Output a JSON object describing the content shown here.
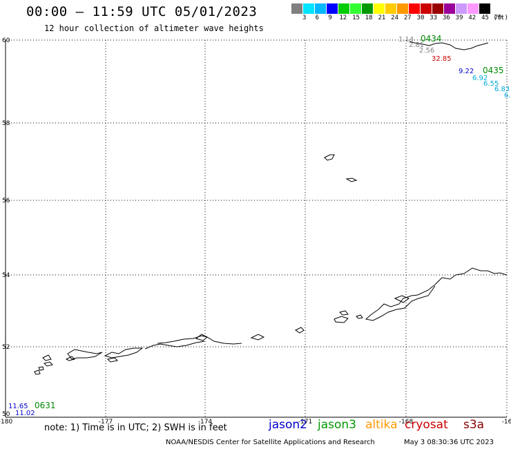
{
  "header": {
    "title": "00:00 – 11:59 UTC 05/01/2023",
    "subtitle": "12 hour collection of altimeter wave heights"
  },
  "color_scale": {
    "colors": [
      "#808080",
      "#00e5ff",
      "#00b8ff",
      "#0000ff",
      "#00cc00",
      "#33ff33",
      "#009900",
      "#ffff00",
      "#ffcc00",
      "#ff9900",
      "#ff0000",
      "#cc0000",
      "#990000",
      "#990099",
      "#cc99ff",
      "#ff99ff",
      "#000000"
    ],
    "labels": [
      "3",
      "6",
      "9",
      "12",
      "15",
      "18",
      "21",
      "24",
      "27",
      "30",
      "33",
      "36",
      "39",
      "42",
      "45",
      "70",
      "(ft)"
    ]
  },
  "axes": {
    "lat_labels": [
      "60",
      "58",
      "56",
      "54",
      "52",
      "50"
    ],
    "lon_labels": [
      "-180",
      "-177",
      "-174",
      "-171",
      "-168",
      "-16"
    ]
  },
  "observations": [
    {
      "text": "1.14",
      "color": "#808080"
    },
    {
      "text": "0434",
      "color": "#008800"
    },
    {
      "text": "2.81",
      "color": "#808080"
    },
    {
      "text": "2.56",
      "color": "#808080"
    },
    {
      "text": "32.85",
      "color": "#cc0000"
    },
    {
      "text": "9.22",
      "color": "#0000cc"
    },
    {
      "text": "0435",
      "color": "#008800"
    },
    {
      "text": "6.92",
      "color": "#00aadd"
    },
    {
      "text": "6.55",
      "color": "#00aadd"
    },
    {
      "text": "6.83",
      "color": "#00aadd"
    },
    {
      "text": "6.",
      "color": "#00aadd"
    },
    {
      "text": "11.65",
      "color": "#0000cc"
    },
    {
      "text": "0631",
      "color": "#008800"
    },
    {
      "text": "11.02",
      "color": "#0000cc"
    }
  ],
  "footer": {
    "note": "note: 1) Time is in UTC; 2) SWH is in feet",
    "satellites": [
      {
        "name": "jason2",
        "color": "#0000cc"
      },
      {
        "name": "jason3",
        "color": "#009900"
      },
      {
        "name": "altika",
        "color": "#ff9900"
      },
      {
        "name": "cryosat",
        "color": "#cc0000"
      },
      {
        "name": "s3a",
        "color": "#880000"
      }
    ],
    "credit": "NOAA/NESDIS Center for Satellite Applications and Research",
    "timestamp": "May  3 08:30:36 UTC 2023"
  }
}
